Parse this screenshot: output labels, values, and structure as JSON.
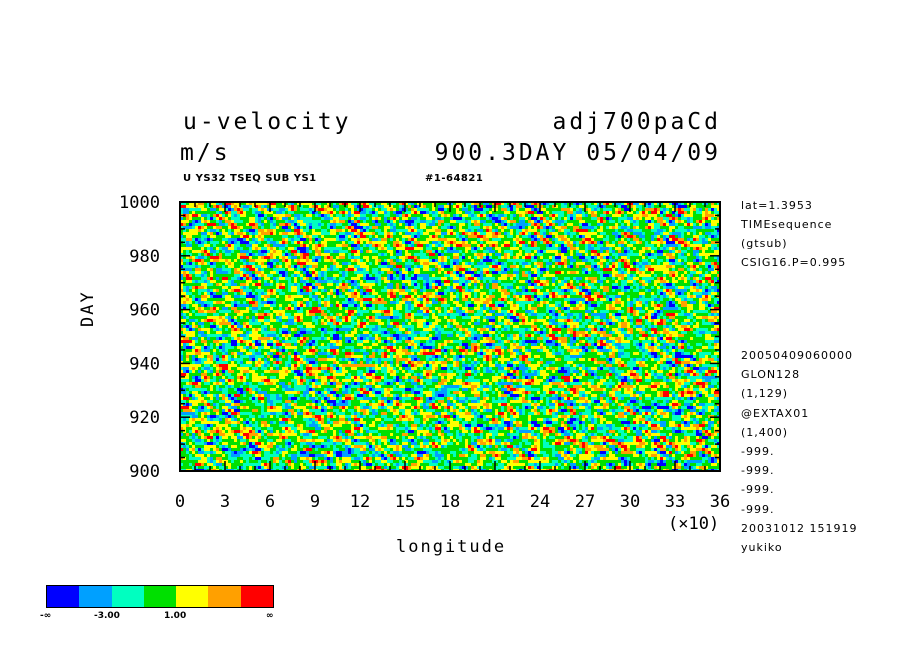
{
  "header": {
    "variable_name": "u-velocity",
    "experiment_name": "adj700paCd",
    "units": "m/s",
    "time_date": "900.3DAY 05/04/09",
    "subtitle_left": "U YS32 TSEQ SUB YS1",
    "subtitle_right": "#1-64821"
  },
  "side_annotations": {
    "top": [
      "lat=1.3953",
      "TIMEsequence",
      "(gtsub)",
      "CSIG16.P=0.995"
    ],
    "bottom": [
      "20050409060000",
      "GLON128",
      "(1,129)",
      "@EXTAX01",
      "(1,400)",
      "-999.",
      "-999.",
      "-999.",
      "-999.",
      "20031012 151919",
      "yukiko"
    ]
  },
  "colorbar": {
    "colors": [
      "#0000ff",
      "#00a0ff",
      "#00ffc0",
      "#00e000",
      "#ffff00",
      "#ffa000",
      "#ff0000"
    ],
    "labels": [
      "-∞",
      "-3.00",
      "1.00",
      "∞"
    ]
  },
  "chart_data": {
    "type": "heatmap",
    "title": "u-velocity",
    "units": "m/s",
    "xlabel": "longitude",
    "ylabel": "DAY",
    "x_multiplier_label": "(×10)",
    "xlim": [
      0,
      36
    ],
    "ylim": [
      900,
      1000
    ],
    "x_ticks": [
      0,
      3,
      6,
      9,
      12,
      15,
      18,
      21,
      24,
      27,
      30,
      33,
      36
    ],
    "y_ticks": [
      900,
      920,
      940,
      960,
      980,
      1000
    ],
    "contour_levels": [
      -3.0,
      1.0
    ],
    "color_scale": [
      "#0000ff",
      "#00a0ff",
      "#00ffc0",
      "#00e000",
      "#ffff00",
      "#ffa000",
      "#ff0000"
    ]
  }
}
